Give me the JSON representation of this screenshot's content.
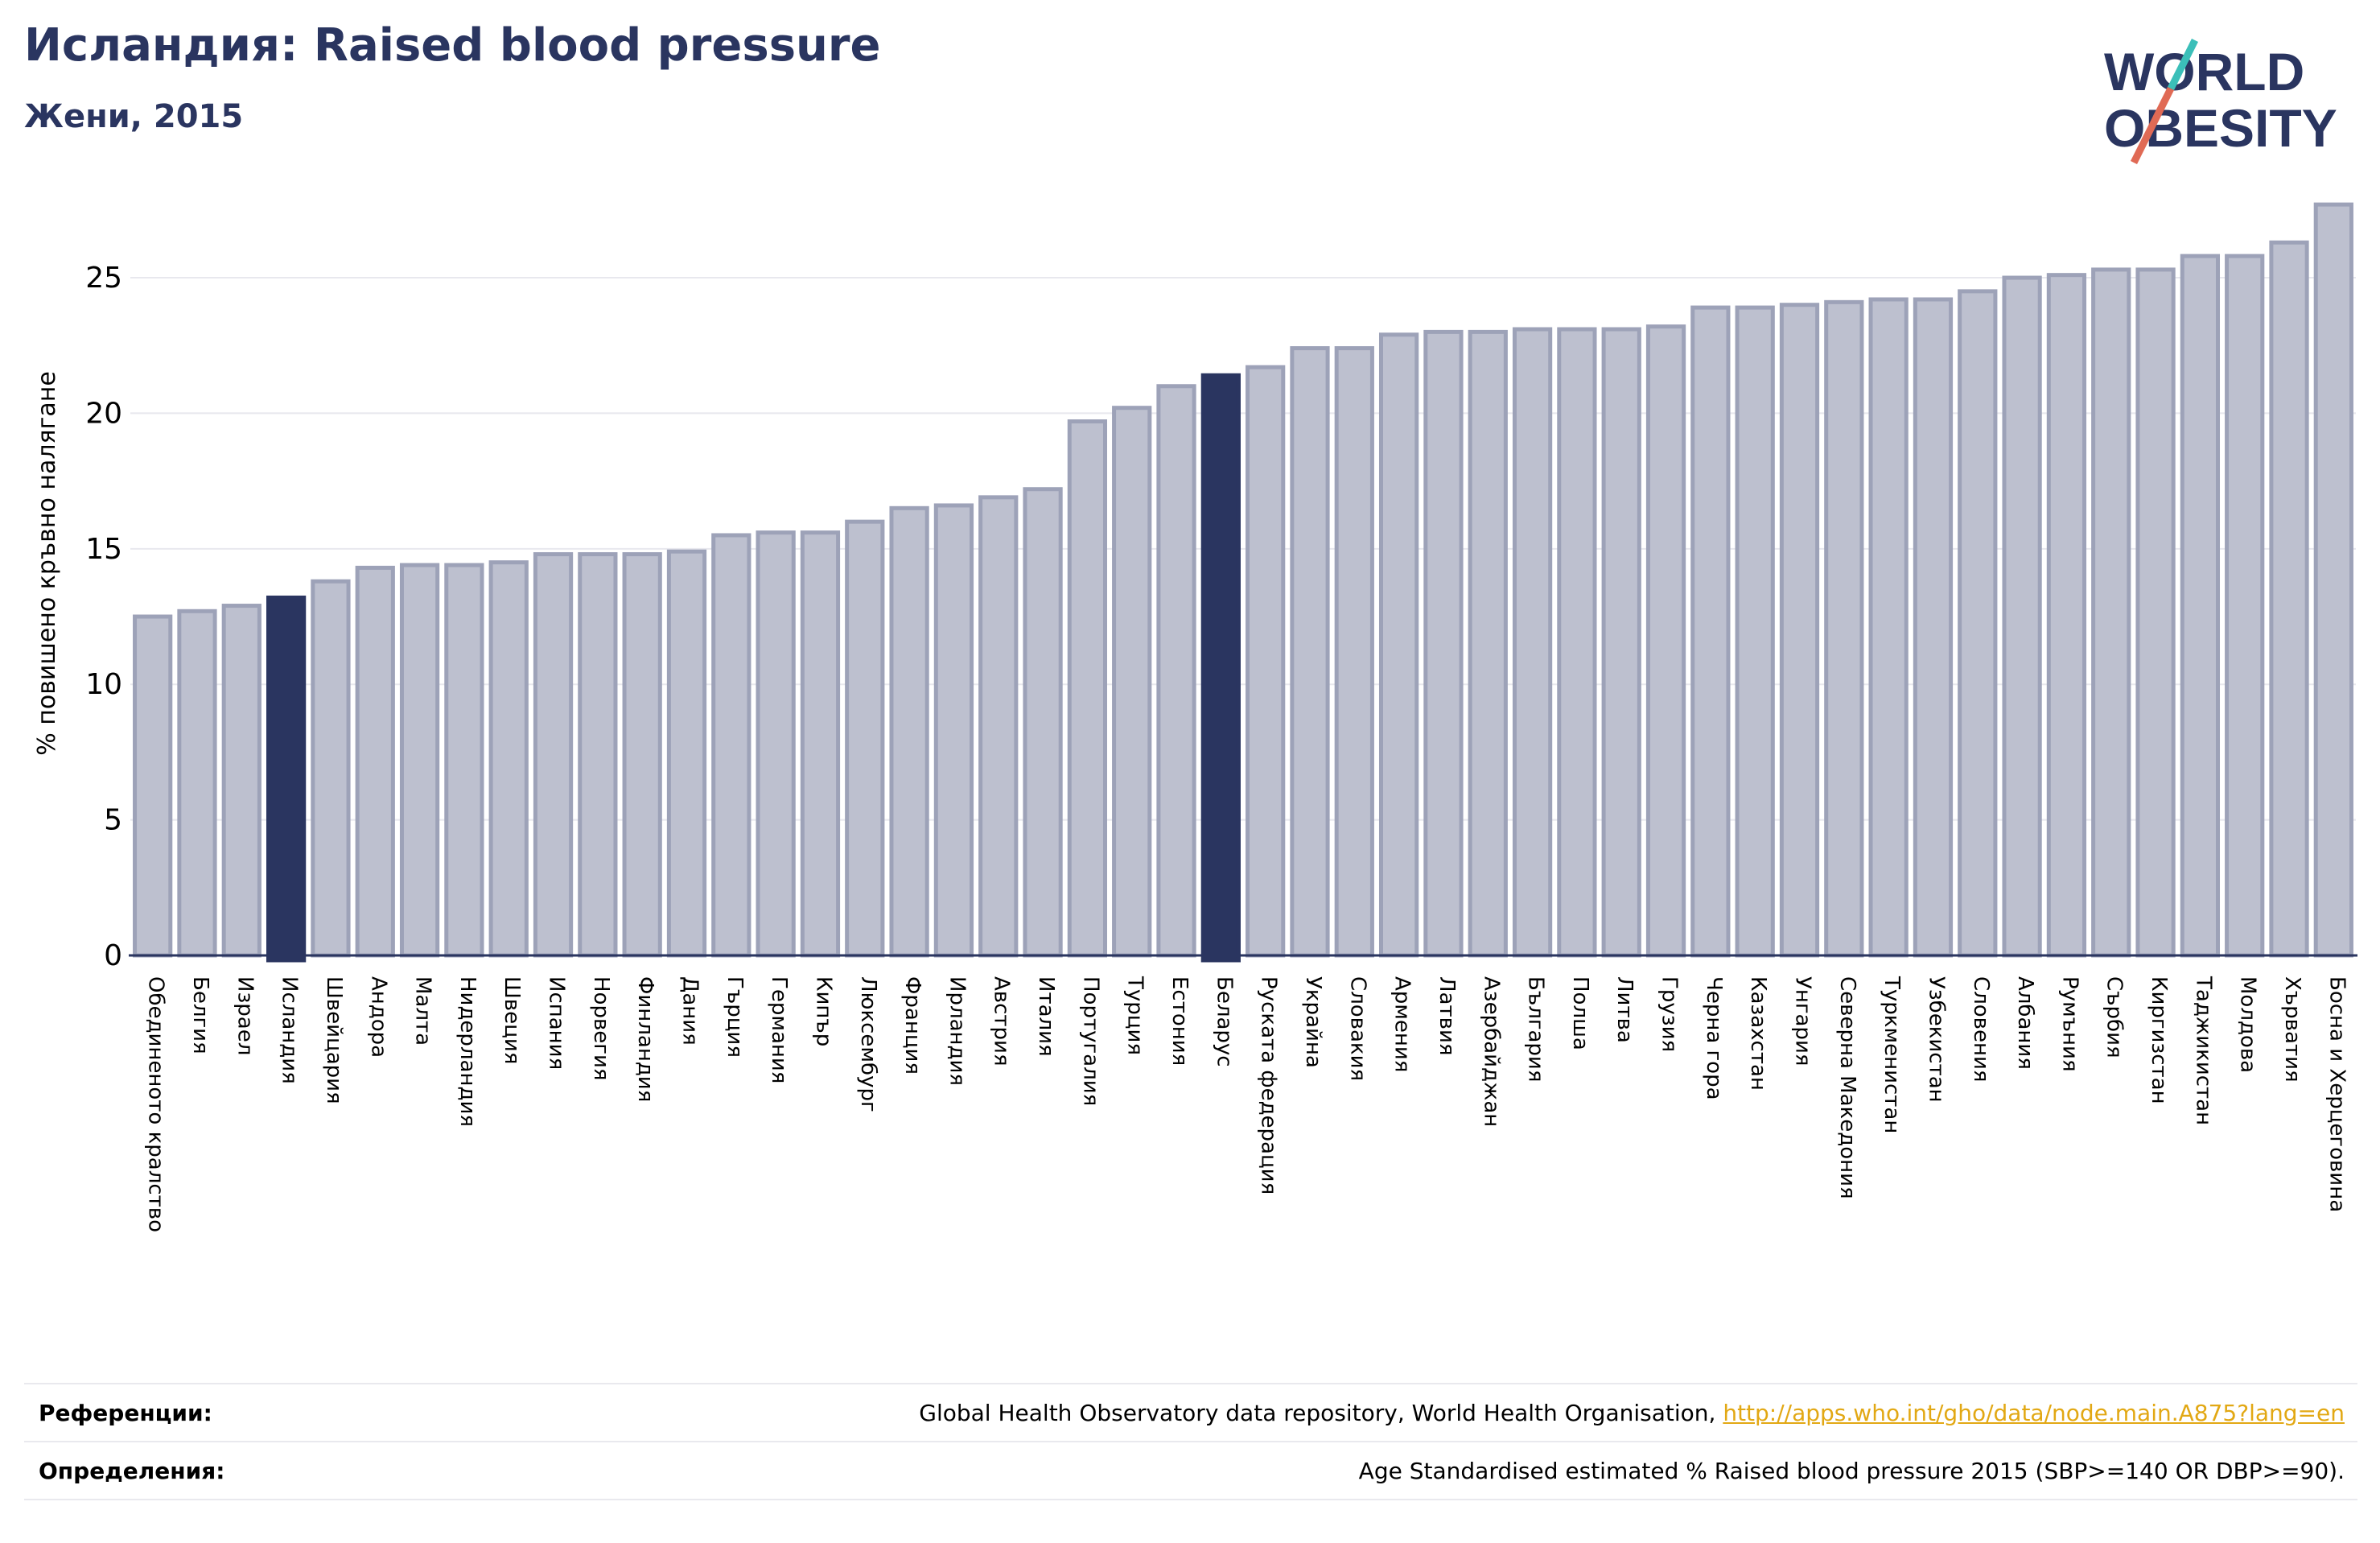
{
  "header": {
    "title": "Исландия: Raised blood pressure",
    "subtitle": "Жени, 2015"
  },
  "logo": {
    "line1": "WORLD",
    "line2": "OBESITY",
    "colors": {
      "text": "#2a3560",
      "slash_teal": "#3bbfb9",
      "slash_red": "#e06a55"
    }
  },
  "colors": {
    "bar": "#bdc0cf",
    "bar_edge": "#9da2b8",
    "highlight": "#2a3560",
    "grid": "#e8e8ee",
    "axis": "#2a3560"
  },
  "chart_data": {
    "type": "bar",
    "ylabel": "% повишено кръвно налягане",
    "ylim": [
      0,
      28
    ],
    "yticks": [
      0,
      5,
      10,
      15,
      20,
      25
    ],
    "grid": true,
    "highlighted": [
      "Исландия",
      "Беларус"
    ],
    "categories": [
      "Обединеното кралство",
      "Белгия",
      "Израел",
      "Исландия",
      "Швейцария",
      "Андора",
      "Малта",
      "Нидерландия",
      "Швеция",
      "Испания",
      "Норвегия",
      "Финландия",
      "Дания",
      "Гърция",
      "Германия",
      "Кипър",
      "Люксембург",
      "Франция",
      "Ирландия",
      "Австрия",
      "Италия",
      "Португалия",
      "Турция",
      "Естония",
      "Беларус",
      "Руската федерация",
      "Украйна",
      "Словакия",
      "Армения",
      "Латвия",
      "Азербайджан",
      "България",
      "Полша",
      "Литва",
      "Грузия",
      "Черна гора",
      "Казахстан",
      "Унгария",
      "Северна Македония",
      "Туркменистан",
      "Узбекистан",
      "Словения",
      "Албания",
      "Румъния",
      "Сърбия",
      "Киргизстан",
      "Таджикистан",
      "Молдова",
      "Хърватия",
      "Босна и Херцеговина"
    ],
    "values": [
      12.5,
      12.7,
      12.9,
      13.2,
      13.8,
      14.3,
      14.4,
      14.4,
      14.5,
      14.8,
      14.8,
      14.8,
      14.9,
      15.5,
      15.6,
      15.6,
      16.0,
      16.5,
      16.6,
      16.9,
      17.2,
      19.7,
      20.2,
      21.0,
      21.4,
      21.7,
      22.4,
      22.4,
      22.9,
      23.0,
      23.0,
      23.1,
      23.1,
      23.1,
      23.2,
      23.9,
      23.9,
      24.0,
      24.1,
      24.2,
      24.2,
      24.5,
      25.0,
      25.1,
      25.3,
      25.3,
      25.8,
      25.8,
      26.3,
      27.7
    ]
  },
  "references": {
    "ref_label": "Референции:",
    "ref_text": "Global Health Observatory data repository, World Health Organisation, ",
    "ref_link": "http://apps.who.int/gho/data/node.main.A875?lang=en",
    "def_label": "Определения:",
    "def_text": "Age Standardised estimated % Raised blood pressure 2015 (SBP>=140 OR DBP>=90)."
  }
}
